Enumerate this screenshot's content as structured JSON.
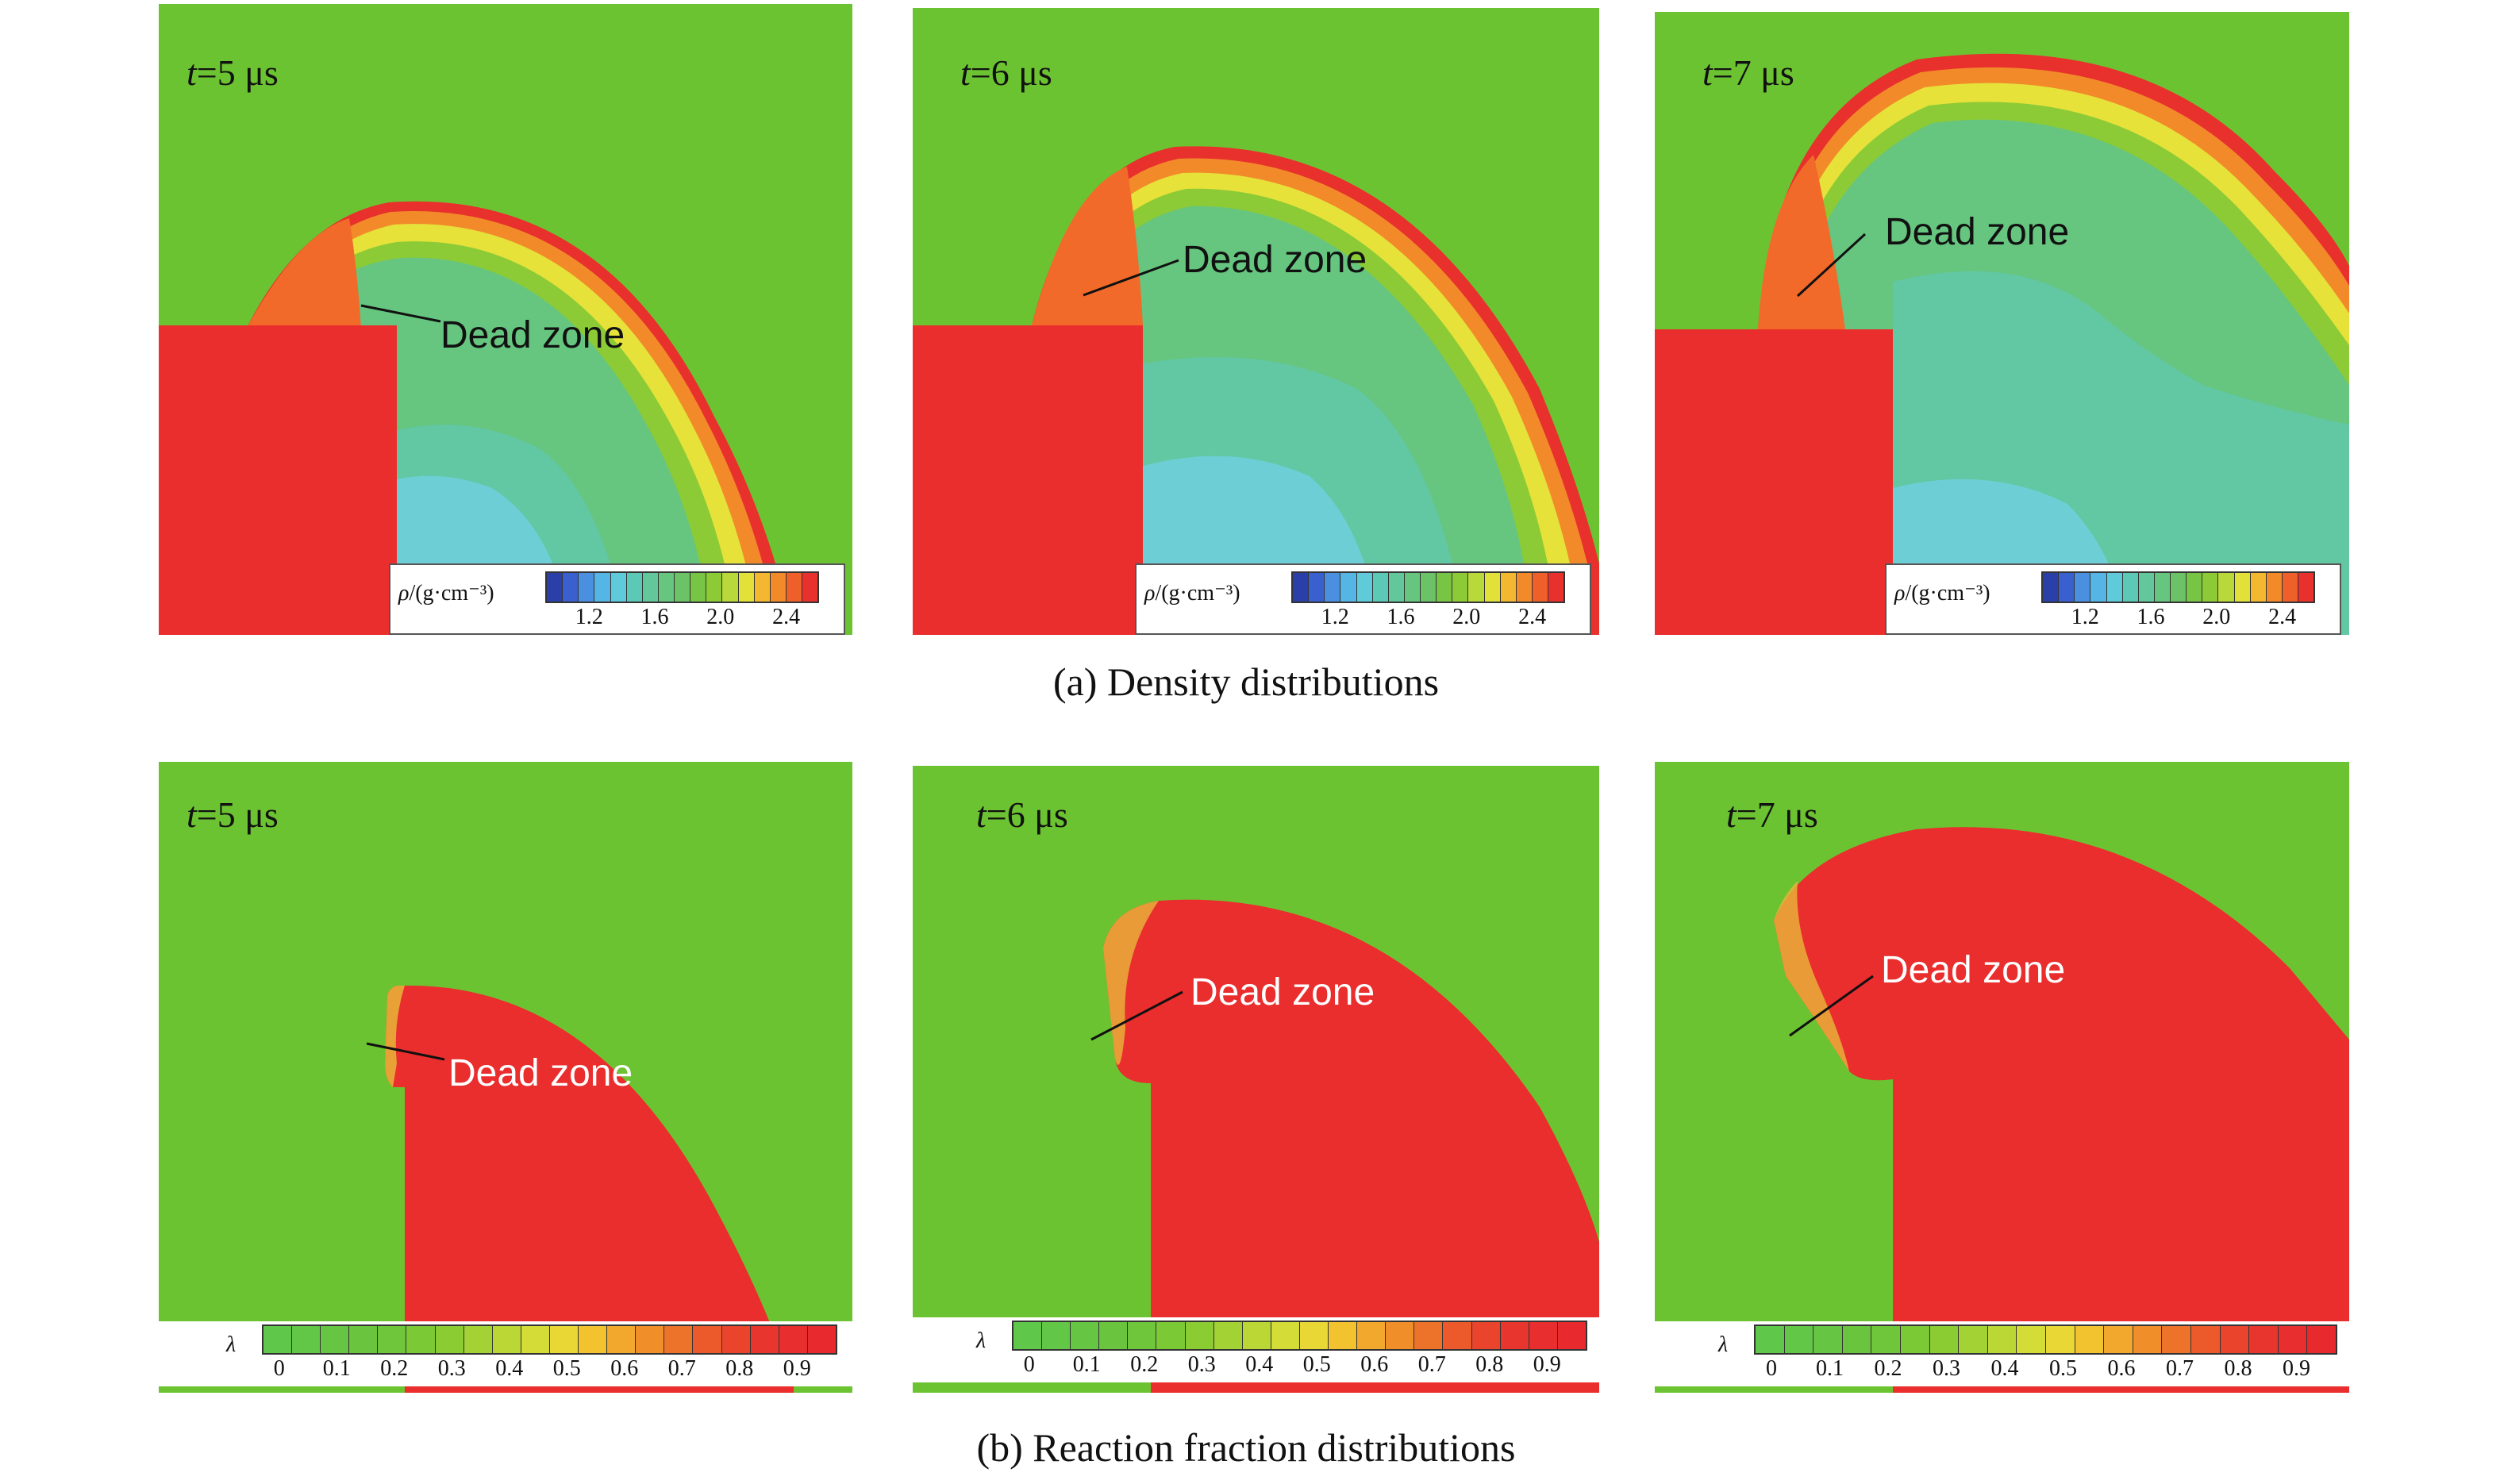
{
  "figure": {
    "row_a": {
      "caption": "(a) Density distributions",
      "panels": [
        {
          "time_var": "t",
          "time_rest": "=5 μs",
          "dead_zone": "Dead zone"
        },
        {
          "time_var": "t",
          "time_rest": "=6 μs",
          "dead_zone": "Dead zone"
        },
        {
          "time_var": "t",
          "time_rest": "=7 μs",
          "dead_zone": "Dead zone"
        }
      ],
      "colorbar": {
        "variable": "ρ",
        "unit": "/(g·cm⁻³)",
        "ticks": [
          "1.2",
          "1.6",
          "2.0",
          "2.4"
        ],
        "colors": [
          "#2a3fa8",
          "#3a5fcf",
          "#4a8fe0",
          "#55b6e6",
          "#5fcad9",
          "#5cc9b6",
          "#62c79b",
          "#66c57f",
          "#6cc266",
          "#78c545",
          "#8ccb36",
          "#b9d83a",
          "#e2e13a",
          "#f4b830",
          "#f28a2a",
          "#ee5f2a",
          "#e8302d"
        ]
      }
    },
    "row_b": {
      "caption": "(b) Reaction fraction distributions",
      "panels": [
        {
          "time_var": "t",
          "time_rest": "=5 μs",
          "dead_zone": "Dead zone"
        },
        {
          "time_var": "t",
          "time_rest": "=6 μs",
          "dead_zone": "Dead zone"
        },
        {
          "time_var": "t",
          "time_rest": "=7 μs",
          "dead_zone": "Dead zone"
        }
      ],
      "colorbar": {
        "variable": "λ",
        "unit": "",
        "ticks": [
          "0",
          "0.1",
          "0.2",
          "0.3",
          "0.4",
          "0.5",
          "0.6",
          "0.7",
          "0.8",
          "0.9"
        ],
        "colors": [
          "#5fc74a",
          "#62c646",
          "#66c542",
          "#6ac43e",
          "#70c63a",
          "#7cc936",
          "#8ccc33",
          "#a2d233",
          "#bad735",
          "#d4dc37",
          "#e8d734",
          "#f2c22f",
          "#f2a82c",
          "#f08e2a",
          "#ee732a",
          "#ec5a2b",
          "#ea442c",
          "#e8352d",
          "#e82e2e",
          "#e82a2e"
        ]
      }
    },
    "colors": {
      "background_green": "#6cc331",
      "charge_red": "#ea2d2d",
      "density_ring_orange": "#f26a2a",
      "density_ring_yellow": "#e6e23a",
      "density_inner_teal": "#62c7a3",
      "density_inner_cyan": "#6dcfd5"
    }
  }
}
